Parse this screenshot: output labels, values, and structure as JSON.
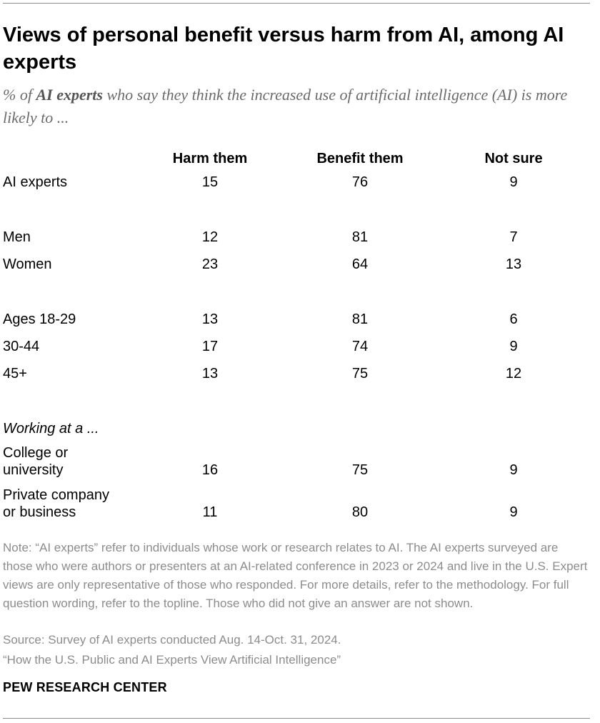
{
  "title": "Views of personal benefit versus harm from AI, among AI experts",
  "subtitle": {
    "prefix": "% of ",
    "emphasis": "AI experts",
    "suffix": " who say they think the increased use of artificial intelligence (AI) is more likely to ..."
  },
  "chart_data": {
    "type": "table",
    "columns": [
      "Harm them",
      "Benefit them",
      "Not sure"
    ],
    "rows": [
      {
        "label": "AI experts",
        "values": [
          15,
          76,
          9
        ]
      },
      {
        "label": "Men",
        "values": [
          12,
          81,
          7
        ]
      },
      {
        "label": "Women",
        "values": [
          23,
          64,
          13
        ]
      },
      {
        "label": "Ages 18-29",
        "values": [
          13,
          81,
          6
        ]
      },
      {
        "label": "30-44",
        "values": [
          17,
          74,
          9
        ]
      },
      {
        "label": "45+",
        "values": [
          13,
          75,
          12
        ]
      },
      {
        "label": "College or university",
        "line1": "College or",
        "line2": "university",
        "values": [
          16,
          75,
          9
        ]
      },
      {
        "label": "Private company or business",
        "line1": "Private company",
        "line2": "or business",
        "values": [
          11,
          80,
          9
        ]
      }
    ],
    "group_label": "Working at a ..."
  },
  "note": "Note: “AI experts” refer to individuals whose work or research relates to AI. The AI experts surveyed are those who were authors or presenters at an AI-related conference in 2023 or 2024 and live in the U.S. Expert views are only representative of those who responded. For more details, refer to the methodology. For full question wording, refer to the topline. Those who did not give an answer are not shown.",
  "source": "Source: Survey of AI experts conducted Aug. 14-Oct. 31, 2024.",
  "report": "“How the U.S. Public and AI Experts View Artificial Intelligence”",
  "brand": "PEW RESEARCH CENTER"
}
